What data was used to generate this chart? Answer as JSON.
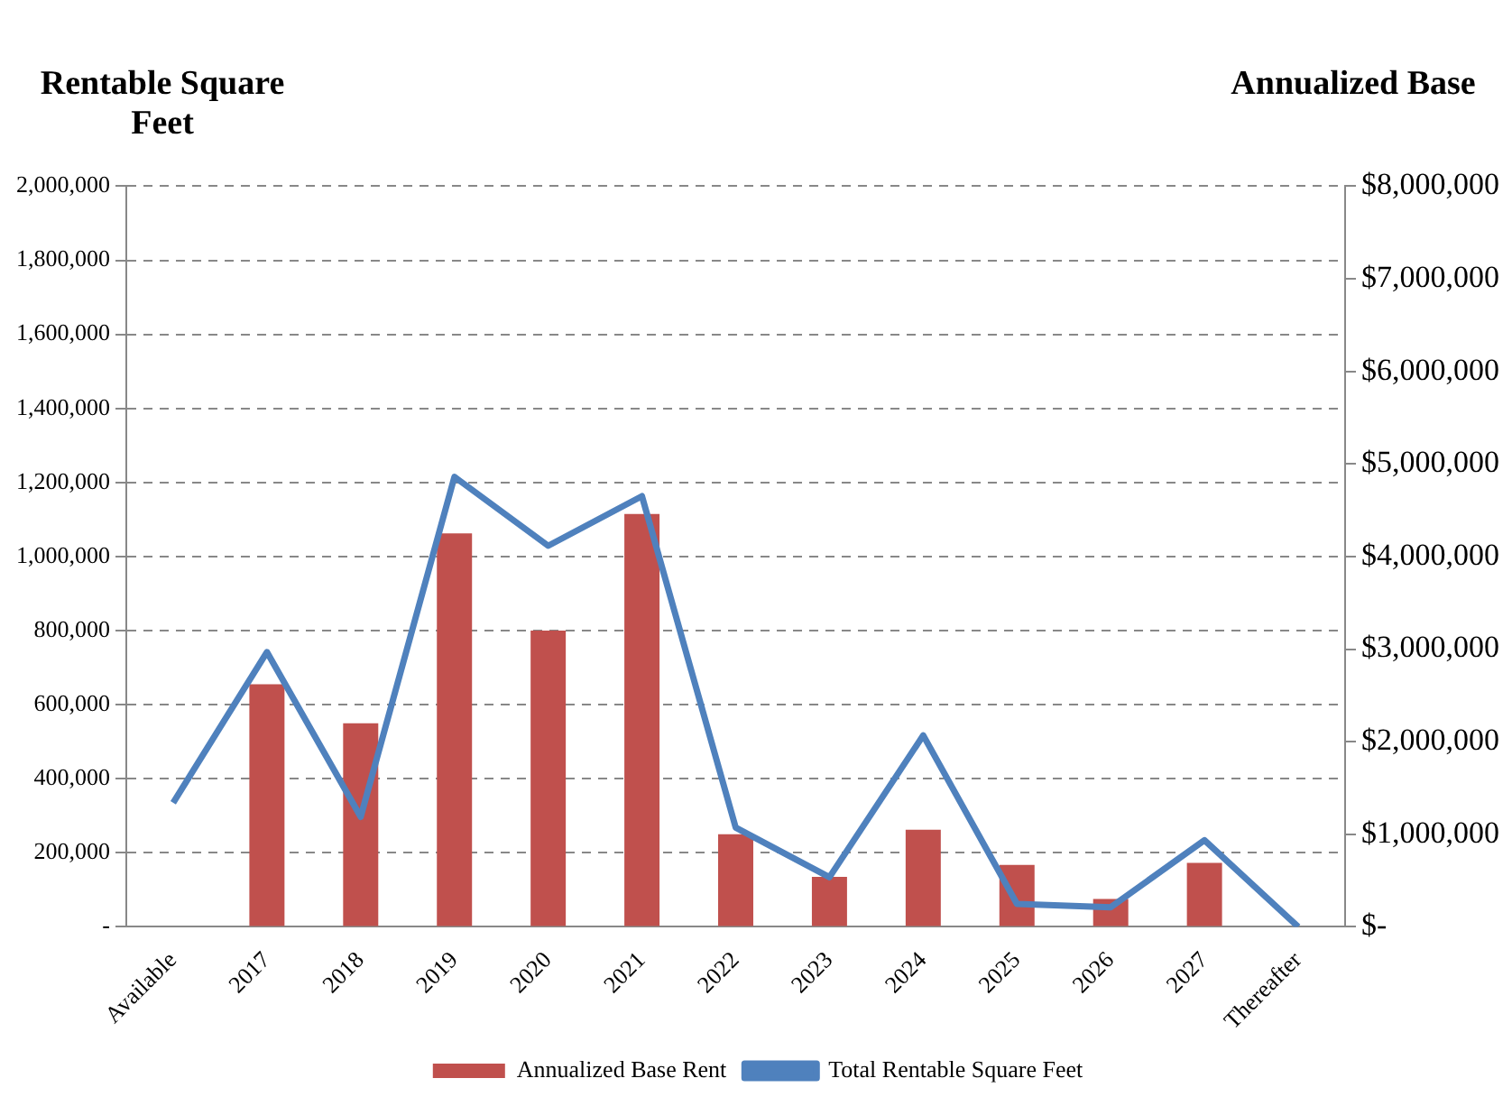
{
  "chart_data": {
    "type": "bar",
    "ylabel": "Rentable Square Feet",
    "y2label": "Annualized Base",
    "categories": [
      "Available",
      "2017",
      "2018",
      "2019",
      "2020",
      "2021",
      "2022",
      "2023",
      "2024",
      "2025",
      "2026",
      "2027",
      "Thereafter"
    ],
    "series": [
      {
        "name": "Annualized Base Rent",
        "axis": "y2",
        "color": "#c0504d",
        "values": [
          null,
          2620000,
          2200000,
          4250000,
          3200000,
          4460000,
          1000000,
          540000,
          1050000,
          670000,
          300000,
          690000,
          null
        ]
      },
      {
        "name": "Total Rentable Square Feet",
        "type": "line",
        "axis": "y",
        "color": "#4f81bd",
        "marker": "none",
        "values": [
          335000,
          742000,
          297000,
          1215000,
          1029000,
          1163000,
          268000,
          134000,
          517000,
          62000,
          53000,
          234000,
          0
        ]
      }
    ],
    "ylim": [
      0,
      2000000
    ],
    "yticks": [
      {
        "value": 0,
        "label": "-"
      },
      {
        "value": 200000,
        "label": "200,000"
      },
      {
        "value": 400000,
        "label": "400,000"
      },
      {
        "value": 600000,
        "label": "600,000"
      },
      {
        "value": 800000,
        "label": "800,000"
      },
      {
        "value": 1000000,
        "label": "1,000,000"
      },
      {
        "value": 1200000,
        "label": "1,200,000"
      },
      {
        "value": 1400000,
        "label": "1,400,000"
      },
      {
        "value": 1600000,
        "label": "1,600,000"
      },
      {
        "value": 1800000,
        "label": "1,800,000"
      },
      {
        "value": 2000000,
        "label": "2,000,000"
      }
    ],
    "y2lim": [
      0,
      8000000
    ],
    "y2ticks": [
      {
        "value": 0,
        "label": "$-"
      },
      {
        "value": 1000000,
        "label": "$1,000,000"
      },
      {
        "value": 2000000,
        "label": "$2,000,000"
      },
      {
        "value": 3000000,
        "label": "$3,000,000"
      },
      {
        "value": 4000000,
        "label": "$4,000,000"
      },
      {
        "value": 5000000,
        "label": "$5,000,000"
      },
      {
        "value": 6000000,
        "label": "$6,000,000"
      },
      {
        "value": 7000000,
        "label": "$7,000,000"
      },
      {
        "value": 8000000,
        "label": "$8,000,000"
      }
    ],
    "grid": "y",
    "legend": "bottom"
  }
}
